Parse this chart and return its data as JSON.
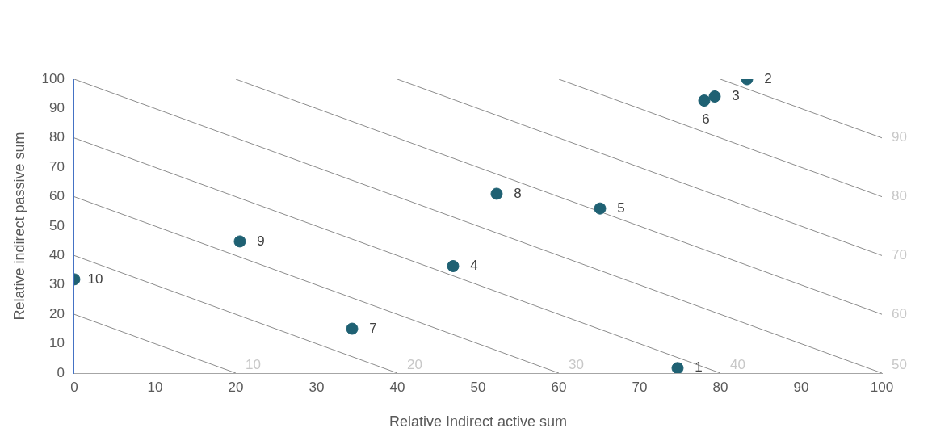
{
  "chart_data": {
    "type": "scatter",
    "xlabel": "Relative Indirect active sum",
    "ylabel": "Relative indirect passive sum",
    "xlim": [
      0,
      100
    ],
    "ylim": [
      0,
      100
    ],
    "xticks": [
      0,
      10,
      20,
      30,
      40,
      50,
      60,
      70,
      80,
      90,
      100
    ],
    "yticks": [
      0,
      10,
      20,
      30,
      40,
      50,
      60,
      70,
      80,
      90,
      100
    ],
    "grid": false,
    "legend": false,
    "marker": "circle",
    "series": [
      {
        "color": "#1f6173",
        "x": [
          74.7,
          83.3,
          79.3,
          46.9,
          65.1,
          78,
          34.4,
          52.3,
          20.5,
          0
        ],
        "values": [
          1.7,
          100,
          94.1,
          36.4,
          56,
          92.7,
          15.1,
          61,
          44.8,
          31.9
        ]
      },
      {
        "type": "line",
        "marker": "none",
        "name": "10",
        "color": "#8c8c8c",
        "x": [
          0,
          20
        ],
        "values": [
          20,
          0
        ]
      },
      {
        "type": "line",
        "marker": "none",
        "name": "20",
        "color": "#8c8c8c",
        "x": [
          0,
          40
        ],
        "values": [
          40,
          0
        ]
      },
      {
        "type": "line",
        "marker": "none",
        "name": "30",
        "color": "#8c8c8c",
        "x": [
          0,
          60
        ],
        "values": [
          60,
          0
        ]
      },
      {
        "type": "line",
        "marker": "none",
        "name": "40",
        "color": "#8c8c8c",
        "x": [
          0,
          80
        ],
        "values": [
          80,
          0
        ]
      },
      {
        "type": "line",
        "marker": "none",
        "name": "50",
        "color": "#8c8c8c",
        "x": [
          0,
          100
        ],
        "values": [
          100,
          0
        ]
      },
      {
        "type": "line",
        "marker": "none",
        "name": "60",
        "color": "#8c8c8c",
        "x": [
          20,
          100
        ],
        "values": [
          100,
          20
        ]
      },
      {
        "type": "line",
        "marker": "none",
        "name": "70",
        "color": "#8c8c8c",
        "x": [
          40,
          100
        ],
        "values": [
          100,
          40
        ]
      },
      {
        "type": "line",
        "marker": "none",
        "name": "80",
        "color": "#8c8c8c",
        "x": [
          60,
          100
        ],
        "values": [
          100,
          60
        ]
      },
      {
        "type": "line",
        "marker": "none",
        "name": "90",
        "color": "#8c8c8c",
        "x": [
          80,
          100
        ],
        "values": [
          100,
          80
        ]
      }
    ],
    "annotations": [
      {
        "text": "1",
        "x": 74.7,
        "y": 1.7
      },
      {
        "text": "2",
        "x": 83.3,
        "y": 100
      },
      {
        "text": "3",
        "x": 79.3,
        "y": 94.1
      },
      {
        "text": "4",
        "x": 46.9,
        "y": 36.4
      },
      {
        "text": "5",
        "x": 65.1,
        "y": 56
      },
      {
        "text": "6",
        "x": 78,
        "y": 92.7
      },
      {
        "text": "7",
        "x": 34.4,
        "y": 15.1
      },
      {
        "text": "8",
        "x": 52.3,
        "y": 61
      },
      {
        "text": "9",
        "x": 20.5,
        "y": 44.8
      },
      {
        "text": "10",
        "x": 0,
        "y": 31.9
      }
    ]
  }
}
